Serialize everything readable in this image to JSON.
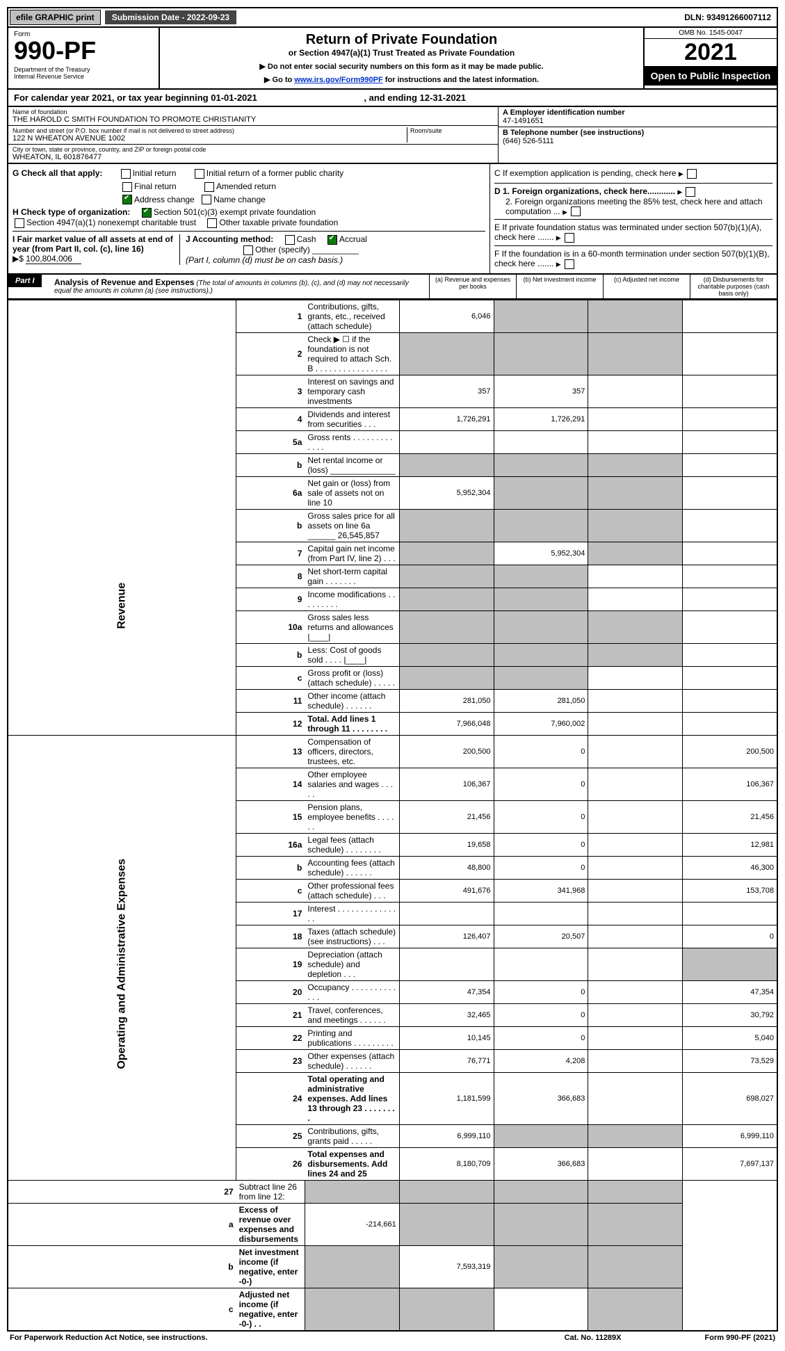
{
  "top": {
    "efile_btn": "efile GRAPHIC print",
    "sub_label": "Submission Date - 2022-09-23",
    "dln": "DLN: 93491266007112"
  },
  "header": {
    "form_label": "Form",
    "form_no": "990-PF",
    "dept": "Department of the Treasury\nInternal Revenue Service",
    "title": "Return of Private Foundation",
    "sub": "or Section 4947(a)(1) Trust Treated as Private Foundation",
    "instr1": "▶ Do not enter social security numbers on this form as it may be made public.",
    "instr2_pre": "▶ Go to ",
    "instr2_link": "www.irs.gov/Form990PF",
    "instr2_post": " for instructions and the latest information.",
    "omb": "OMB No. 1545-0047",
    "year": "2021",
    "open": "Open to Public Inspection"
  },
  "cal": {
    "text_pre": "For calendar year 2021, or tax year beginning ",
    "begin": "01-01-2021",
    "mid": " , and ending ",
    "end": "12-31-2021"
  },
  "info": {
    "name_label": "Name of foundation",
    "name": "THE HAROLD C SMITH FOUNDATION TO PROMOTE CHRISTIANITY",
    "addr_label": "Number and street (or P.O. box number if mail is not delivered to street address)",
    "addr": "122 N WHEATON AVENUE 1002",
    "room_label": "Room/suite",
    "city_label": "City or town, state or province, country, and ZIP or foreign postal code",
    "city": "WHEATON, IL  601876477",
    "ein_label": "A Employer identification number",
    "ein": "47-1491651",
    "tel_label": "B Telephone number (see instructions)",
    "tel": "(646) 526-5111",
    "c_label": "C If exemption application is pending, check here",
    "d1": "D 1. Foreign organizations, check here............",
    "d2": "2. Foreign organizations meeting the 85% test, check here and attach computation ...",
    "e": "E  If private foundation status was terminated under section 507(b)(1)(A), check here .......",
    "f": "F  If the foundation is in a 60-month termination under section 507(b)(1)(B), check here .......",
    "g_label": "G Check all that apply:",
    "g_opts": [
      "Initial return",
      "Final return",
      "Address change",
      "Initial return of a former public charity",
      "Amended return",
      "Name change"
    ],
    "h_label": "H Check type of organization:",
    "h_opts": [
      "Section 501(c)(3) exempt private foundation",
      "Section 4947(a)(1) nonexempt charitable trust",
      "Other taxable private foundation"
    ],
    "i_label": "I Fair market value of all assets at end of year (from Part II, col. (c), line 16)",
    "i_val": "100,804,006",
    "j_label": "J Accounting method:",
    "j_opts": [
      "Cash",
      "Accrual"
    ],
    "j_other": "Other (specify)",
    "j_note": "(Part I, column (d) must be on cash basis.)"
  },
  "part1": {
    "label": "Part I",
    "title": "Analysis of Revenue and Expenses",
    "note": "(The total of amounts in columns (b), (c), and (d) may not necessarily equal the amounts in column (a) (see instructions).)",
    "col_a": "(a) Revenue and expenses per books",
    "col_b": "(b) Net investment income",
    "col_c": "(c) Adjusted net income",
    "col_d": "(d) Disbursements for charitable purposes (cash basis only)"
  },
  "side_labels": {
    "rev": "Revenue",
    "exp": "Operating and Administrative Expenses"
  },
  "rows": [
    {
      "n": "1",
      "d": "Contributions, gifts, grants, etc., received (attach schedule)",
      "a": "6,046",
      "bG": true,
      "cG": true,
      "dG": true
    },
    {
      "n": "2",
      "d": "Check ▶ ☐ if the foundation is not required to attach Sch. B   .  .  .  .  .  .  .  .  .  .  .  .  .  .  .  .",
      "aG": true,
      "bG": true,
      "cG": true,
      "dG": true
    },
    {
      "n": "3",
      "d": "Interest on savings and temporary cash investments",
      "a": "357",
      "b": "357",
      "dG": true
    },
    {
      "n": "4",
      "d": "Dividends and interest from securities   .  .  .",
      "a": "1,726,291",
      "b": "1,726,291",
      "dG": true
    },
    {
      "n": "5a",
      "d": "Gross rents   .  .  .  .  .  .  .  .  .  .  .  .  .",
      "dG": true
    },
    {
      "n": "b",
      "d": "Net rental income or (loss)  ______________",
      "aG": true,
      "bG": true,
      "cG": true,
      "dG": true
    },
    {
      "n": "6a",
      "d": "Net gain or (loss) from sale of assets not on line 10",
      "a": "5,952,304",
      "bG": true,
      "cG": true,
      "dG": true
    },
    {
      "n": "b",
      "d": "Gross sales price for all assets on line 6a ______ 26,545,857",
      "aG": true,
      "bG": true,
      "cG": true,
      "dG": true
    },
    {
      "n": "7",
      "d": "Capital gain net income (from Part IV, line 2)   .  .  .",
      "aG": true,
      "b": "5,952,304",
      "cG": true,
      "dG": true
    },
    {
      "n": "8",
      "d": "Net short-term capital gain   .  .  .  .  .  .  .",
      "aG": true,
      "bG": true,
      "dG": true
    },
    {
      "n": "9",
      "d": "Income modifications   .  .  .  .  .  .  .  .  .",
      "aG": true,
      "bG": true,
      "dG": true
    },
    {
      "n": "10a",
      "d": "Gross sales less returns and allowances  |____|",
      "aG": true,
      "bG": true,
      "cG": true,
      "dG": true
    },
    {
      "n": "b",
      "d": "Less: Cost of goods sold   .  .  .  .  |____|",
      "aG": true,
      "bG": true,
      "cG": true,
      "dG": true
    },
    {
      "n": "c",
      "d": "Gross profit or (loss) (attach schedule)   .  .  .  .  .",
      "aG": true,
      "bG": true,
      "dG": true
    },
    {
      "n": "11",
      "d": "Other income (attach schedule)   .  .  .  .  .  .",
      "a": "281,050",
      "b": "281,050",
      "dG": true
    },
    {
      "n": "12",
      "d": "Total. Add lines 1 through 11   .  .  .  .  .  .  .  .",
      "a": "7,966,048",
      "b": "7,960,002",
      "dG": true,
      "bold": true
    }
  ],
  "exp_rows": [
    {
      "n": "13",
      "d": "Compensation of officers, directors, trustees, etc.",
      "a": "200,500",
      "b": "0",
      "dd": "200,500"
    },
    {
      "n": "14",
      "d": "Other employee salaries and wages   .  .  .  .  .",
      "a": "106,367",
      "b": "0",
      "dd": "106,367"
    },
    {
      "n": "15",
      "d": "Pension plans, employee benefits   .  .  .  .  .  .",
      "a": "21,456",
      "b": "0",
      "dd": "21,456"
    },
    {
      "n": "16a",
      "d": "Legal fees (attach schedule)   .  .  .  .  .  .  .  .",
      "a": "19,658",
      "b": "0",
      "dd": "12,981"
    },
    {
      "n": "b",
      "d": "Accounting fees (attach schedule)   .  .  .  .  .  .",
      "a": "48,800",
      "b": "0",
      "dd": "46,300"
    },
    {
      "n": "c",
      "d": "Other professional fees (attach schedule)   .  .  .",
      "a": "491,676",
      "b": "341,968",
      "dd": "153,708"
    },
    {
      "n": "17",
      "d": "Interest   .  .  .  .  .  .  .  .  .  .  .  .  .  .  ."
    },
    {
      "n": "18",
      "d": "Taxes (attach schedule) (see instructions)   .  .  .",
      "a": "126,407",
      "b": "20,507",
      "dd": "0"
    },
    {
      "n": "19",
      "d": "Depreciation (attach schedule) and depletion   .  .  .",
      "ddG": true
    },
    {
      "n": "20",
      "d": "Occupancy   .  .  .  .  .  .  .  .  .  .  .  .  .",
      "a": "47,354",
      "b": "0",
      "dd": "47,354"
    },
    {
      "n": "21",
      "d": "Travel, conferences, and meetings   .  .  .  .  .  .",
      "a": "32,465",
      "b": "0",
      "dd": "30,792"
    },
    {
      "n": "22",
      "d": "Printing and publications   .  .  .  .  .  .  .  .  .",
      "a": "10,145",
      "b": "0",
      "dd": "5,040"
    },
    {
      "n": "23",
      "d": "Other expenses (attach schedule)   .  .  .  .  .  .",
      "a": "76,771",
      "b": "4,208",
      "dd": "73,529"
    },
    {
      "n": "24",
      "d": "Total operating and administrative expenses. Add lines 13 through 23   .  .  .  .  .  .  .  .",
      "a": "1,181,599",
      "b": "366,683",
      "dd": "698,027",
      "bold": true
    },
    {
      "n": "25",
      "d": "Contributions, gifts, grants paid   .  .  .  .  .",
      "a": "6,999,110",
      "bG": true,
      "cG": true,
      "dd": "6,999,110"
    },
    {
      "n": "26",
      "d": "Total expenses and disbursements. Add lines 24 and 25",
      "a": "8,180,709",
      "b": "366,683",
      "dd": "7,697,137",
      "bold": true
    }
  ],
  "bottom_rows": [
    {
      "n": "27",
      "d": "Subtract line 26 from line 12:",
      "aG": true,
      "bG": true,
      "cG": true,
      "ddG": true
    },
    {
      "n": "a",
      "d": "Excess of revenue over expenses and disbursements",
      "a": "-214,661",
      "bG": true,
      "cG": true,
      "ddG": true,
      "bold": true
    },
    {
      "n": "b",
      "d": "Net investment income (if negative, enter -0-)",
      "aG": true,
      "b": "7,593,319",
      "cG": true,
      "ddG": true,
      "bold": true
    },
    {
      "n": "c",
      "d": "Adjusted net income (if negative, enter -0-)   .  .",
      "aG": true,
      "bG": true,
      "ddG": true,
      "bold": true
    }
  ],
  "footer": {
    "left": "For Paperwork Reduction Act Notice, see instructions.",
    "mid": "Cat. No. 11289X",
    "right": "Form 990-PF (2021)"
  }
}
